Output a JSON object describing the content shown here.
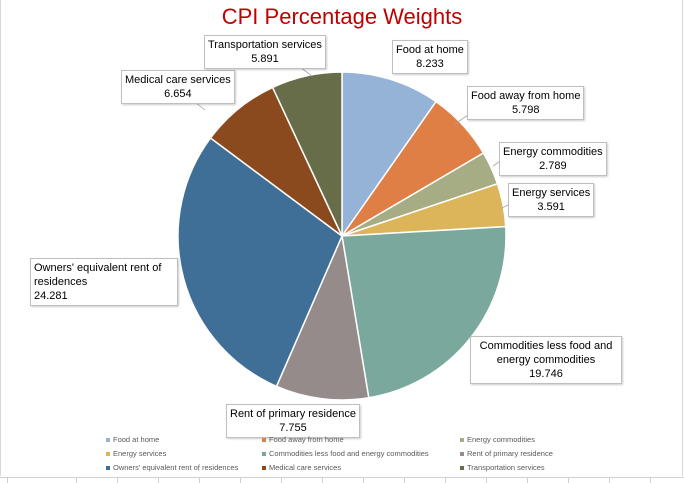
{
  "chart_data": {
    "type": "pie",
    "title": "CPI Percentage Weights",
    "start_angle": "top",
    "direction": "clockwise",
    "legend_position": "bottom",
    "slices": [
      {
        "label": "Food at home",
        "value": 8.233,
        "value_label": "8.233",
        "color": "#95b3d7"
      },
      {
        "label": "Food away from home",
        "value": 5.798,
        "value_label": "5.798",
        "color": "#e07f45"
      },
      {
        "label": "Energy commodities",
        "value": 2.789,
        "value_label": "2.789",
        "color": "#a6ad85"
      },
      {
        "label": "Energy services",
        "value": 3.591,
        "value_label": "3.591",
        "color": "#dcb55b"
      },
      {
        "label": "Commodities less food and energy commodities",
        "value": 19.746,
        "value_label": "19.746",
        "color": "#7aa89c"
      },
      {
        "label": "Rent of primary residence",
        "value": 7.755,
        "value_label": "7.755",
        "color": "#958b8a"
      },
      {
        "label": "Owners' equivalent rent of residences",
        "value": 24.281,
        "value_label": "24.281",
        "color": "#3f6e96"
      },
      {
        "label": "Medical care services",
        "value": 6.654,
        "value_label": "6.654",
        "color": "#8b4a1e"
      },
      {
        "label": "Transportation services",
        "value": 5.891,
        "value_label": "5.891",
        "color": "#666d48"
      }
    ]
  }
}
